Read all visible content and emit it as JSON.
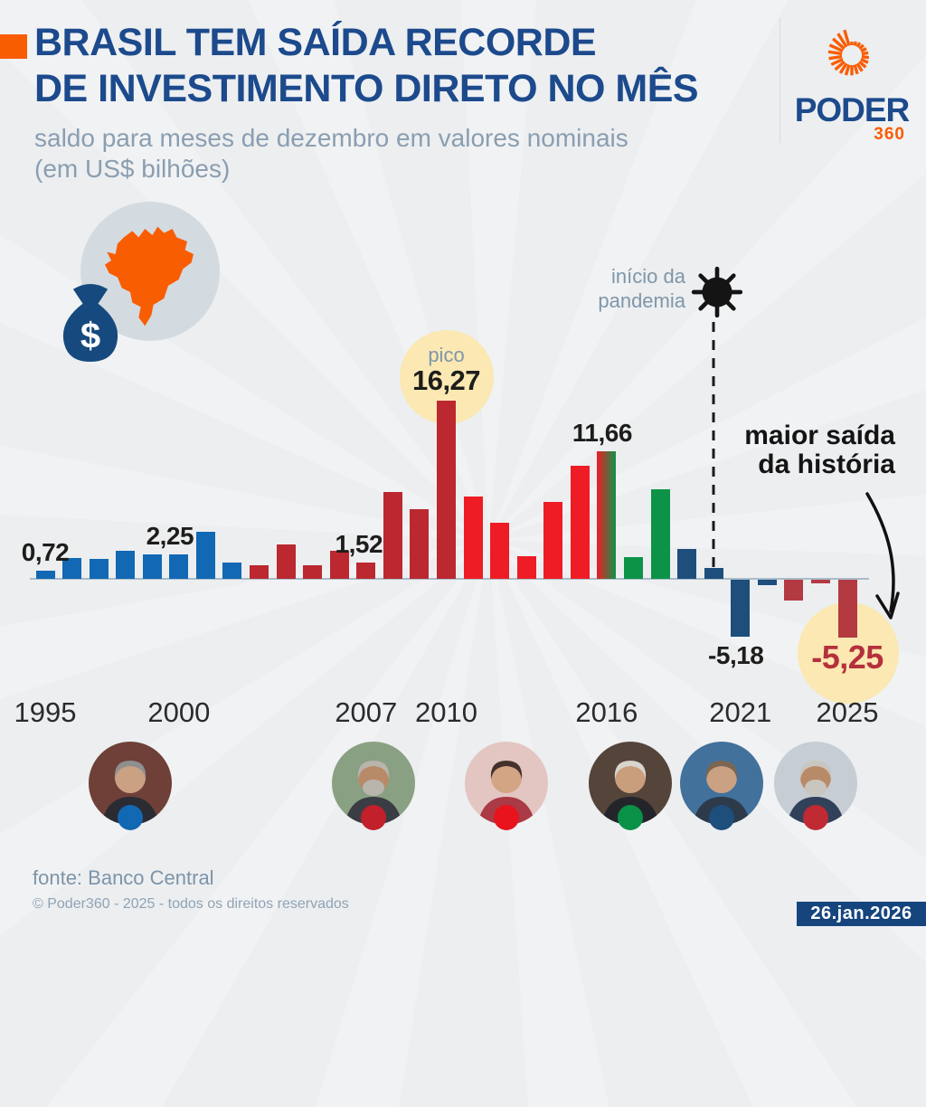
{
  "header": {
    "title_line1": "BRASIL TEM SAÍDA RECORDE",
    "title_line2": "DE INVESTIMENTO DIRETO NO MÊS",
    "subtitle_line1": "saldo para meses de dezembro em valores nominais",
    "subtitle_line2": "(em US$ bilhões)",
    "title_color": "#1c4a8c",
    "accent_color": "#f95d02"
  },
  "logo": {
    "brand": "PODER",
    "suffix": "360",
    "brand_color": "#1c4a8c",
    "suffix_color": "#f95d02"
  },
  "chart_data": {
    "type": "bar",
    "title": "Brasil tem saída recorde de investimento direto no mês",
    "subtitle": "saldo para meses de dezembro em valores nominais",
    "unit": "US$ bilhões",
    "ylim": [
      -6,
      17
    ],
    "grid": false,
    "legend": "none (bar colors indicate presidential term)",
    "x": [
      1995,
      1996,
      1997,
      1998,
      1999,
      2000,
      2001,
      2002,
      2003,
      2004,
      2005,
      2006,
      2007,
      2008,
      2009,
      2010,
      2011,
      2012,
      2013,
      2014,
      2015,
      2016,
      2017,
      2018,
      2019,
      2020,
      2021,
      2022,
      2023,
      2024,
      2025
    ],
    "values": [
      0.72,
      1.9,
      1.8,
      2.6,
      2.2,
      2.25,
      4.3,
      1.5,
      1.2,
      3.1,
      1.2,
      2.6,
      1.52,
      7.9,
      6.4,
      16.27,
      7.5,
      5.1,
      2.1,
      7.0,
      10.3,
      11.66,
      2.0,
      8.2,
      2.7,
      1.0,
      -5.18,
      -0.5,
      -1.9,
      -0.3,
      -5.25
    ],
    "eras": [
      "fhc",
      "fhc",
      "fhc",
      "fhc",
      "fhc",
      "fhc",
      "fhc",
      "fhc",
      "lula",
      "lula",
      "lula",
      "lula",
      "lula",
      "lula",
      "lula",
      "lula",
      "dilma",
      "dilma",
      "dilma",
      "dilma",
      "dilma",
      "dilma_temer",
      "temer",
      "temer",
      "bolsonaro",
      "bolsonaro",
      "bolsonaro",
      "bolsonaro",
      "lula2",
      "lula2",
      "lula2"
    ],
    "president_colors": {
      "fhc": "#1268b3",
      "lula": "#bb2830",
      "dilma": "#ee1c24",
      "dilma_temer": [
        "#ee1c24",
        "#0d9348"
      ],
      "temer": "#0d9348",
      "bolsonaro": "#1d4e7c",
      "lula2": "#b43a42"
    },
    "axis_years": [
      1995,
      2000,
      2007,
      2010,
      2016,
      2021,
      2025
    ],
    "value_labels": [
      {
        "year": 1995,
        "text": "0,72",
        "dx": 0
      },
      {
        "year": 2000,
        "text": "2,25",
        "dx": -10
      },
      {
        "year": 2007,
        "text": "1,52",
        "dx": -8
      },
      {
        "year": 2010,
        "text": "16,27",
        "tag": "pico"
      },
      {
        "year": 2016,
        "text": "11,66",
        "dx": -5
      },
      {
        "year": 2021,
        "text": "-5,18",
        "dx": -5
      },
      {
        "year": 2025,
        "text": "-5,25",
        "highlight": true
      }
    ],
    "annotations": {
      "peak_tag": "pico",
      "pandemic": {
        "line1": "início da",
        "line2": "pandemia",
        "x_year": 2020
      },
      "record": {
        "line1": "maior saída",
        "line2": "da história"
      },
      "highlight_circle_color": "#fbe8b2",
      "highlight_text_color": "#b5303c"
    }
  },
  "presidents": [
    {
      "id": "fhc",
      "x": 144,
      "dot_color": "#1268b3"
    },
    {
      "id": "lula",
      "x": 413,
      "dot_color": "#c2202a"
    },
    {
      "id": "dilma",
      "x": 560,
      "dot_color": "#e8131c"
    },
    {
      "id": "temer",
      "x": 697,
      "dot_color": "#0a9148"
    },
    {
      "id": "bolsonaro",
      "x": 798,
      "dot_color": "#1d4e7c"
    },
    {
      "id": "lula-2",
      "x": 902,
      "dot_color": "#bf2a33"
    }
  ],
  "footer": {
    "source": "fonte: Banco Central",
    "copyright": "© Poder360 - 2025 - todos os direitos reservados",
    "date_badge": "26.jan.2026"
  }
}
